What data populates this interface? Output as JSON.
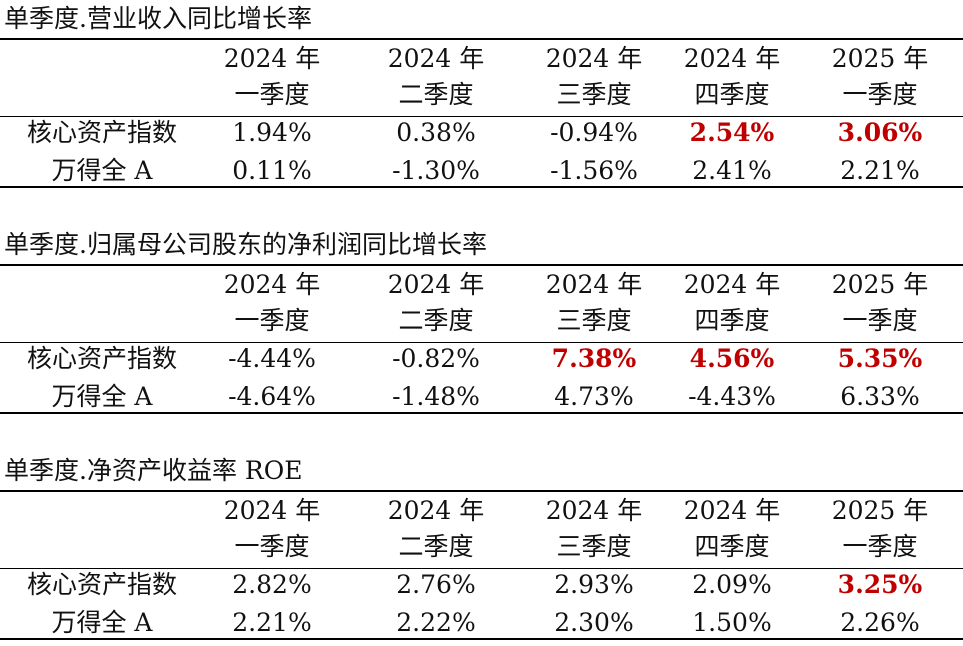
{
  "columns": [
    {
      "year": "2024 年",
      "quarter": "一季度"
    },
    {
      "year": "2024 年",
      "quarter": "二季度"
    },
    {
      "year": "2024 年",
      "quarter": "三季度"
    },
    {
      "year": "2024 年",
      "quarter": "四季度"
    },
    {
      "year": "2025 年",
      "quarter": "一季度"
    }
  ],
  "highlight_color": "#c00000",
  "sections": [
    {
      "title": "单季度.营业收入同比增长率",
      "rows": [
        {
          "label": "核心资产指数",
          "values": [
            "1.94%",
            "0.38%",
            "-0.94%",
            "2.54%",
            "3.06%"
          ],
          "highlight": [
            false,
            false,
            false,
            true,
            true
          ]
        },
        {
          "label": "万得全 A",
          "values": [
            "0.11%",
            "-1.30%",
            "-1.56%",
            "2.41%",
            "2.21%"
          ],
          "highlight": [
            false,
            false,
            false,
            false,
            false
          ]
        }
      ]
    },
    {
      "title": "单季度.归属母公司股东的净利润同比增长率",
      "rows": [
        {
          "label": "核心资产指数",
          "values": [
            "-4.44%",
            "-0.82%",
            "7.38%",
            "4.56%",
            "5.35%"
          ],
          "highlight": [
            false,
            false,
            true,
            true,
            true
          ]
        },
        {
          "label": "万得全 A",
          "values": [
            "-4.64%",
            "-1.48%",
            "4.73%",
            "-4.43%",
            "6.33%"
          ],
          "highlight": [
            false,
            false,
            false,
            false,
            false
          ]
        }
      ]
    },
    {
      "title": "单季度.净资产收益率 ROE",
      "rows": [
        {
          "label": "核心资产指数",
          "values": [
            "2.82%",
            "2.76%",
            "2.93%",
            "2.09%",
            "3.25%"
          ],
          "highlight": [
            false,
            false,
            false,
            false,
            true
          ]
        },
        {
          "label": "万得全 A",
          "values": [
            "2.21%",
            "2.22%",
            "2.30%",
            "1.50%",
            "2.26%"
          ],
          "highlight": [
            false,
            false,
            false,
            false,
            false
          ]
        }
      ]
    }
  ]
}
